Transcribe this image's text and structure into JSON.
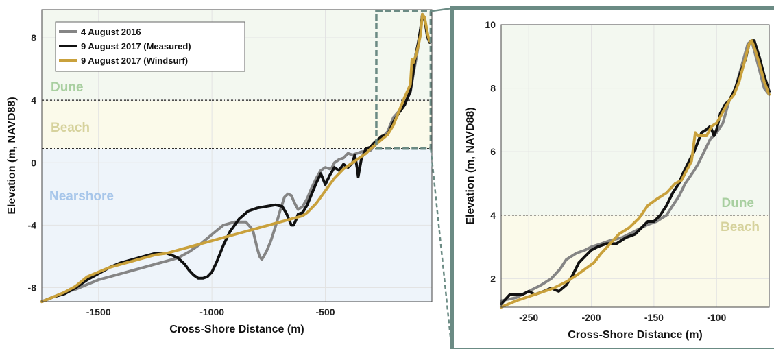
{
  "chart_data": [
    {
      "type": "line",
      "xlabel": "Cross-Shore Distance (m)",
      "ylabel": "Elevation (m, NAVD88)",
      "xlim": [
        -1750,
        -30
      ],
      "ylim": [
        -8.9,
        9.8
      ],
      "xticks": [
        "-1500",
        "-1000",
        "-500"
      ],
      "yticks": [
        "8",
        "4",
        "0",
        "-4",
        "-8"
      ],
      "grid": true,
      "legend_position": "top-left",
      "zones": [
        {
          "label": "Dune",
          "from": 4,
          "to": 9.8,
          "label_color": "#a8cfa0",
          "fill": "#f3f8f0"
        },
        {
          "label": "Beach",
          "from": 0.9,
          "to": 4,
          "label_color": "#d6d29c",
          "fill": "#fbfaea"
        },
        {
          "label": "Nearshore",
          "from": -8.9,
          "to": 0.9,
          "label_color": "#a7c6ea",
          "fill": "#eef4fa"
        }
      ],
      "inset_box": {
        "x": [
          -275,
          -35
        ],
        "y": [
          0.9,
          9.7
        ]
      },
      "series": [
        {
          "name": "4 August 2016",
          "color": "#858585",
          "x": [
            -1750,
            -1700,
            -1650,
            -1600,
            -1550,
            -1500,
            -1450,
            -1400,
            -1350,
            -1300,
            -1250,
            -1200,
            -1150,
            -1100,
            -1050,
            -1000,
            -950,
            -900,
            -850,
            -820,
            -800,
            -790,
            -780,
            -760,
            -740,
            -720,
            -700,
            -680,
            -665,
            -650,
            -635,
            -620,
            -600,
            -580,
            -560,
            -540,
            -520,
            -500,
            -480,
            -470,
            -460,
            -440,
            -420,
            -400,
            -380,
            -360,
            -340,
            -300,
            -275,
            -250,
            -225,
            -200,
            -175,
            -150,
            -125,
            -110,
            -100,
            -90,
            -80,
            -72,
            -62,
            -50,
            -40
          ],
          "y": [
            -8.9,
            -8.6,
            -8.3,
            -8.1,
            -7.8,
            -7.5,
            -7.3,
            -7.1,
            -6.9,
            -6.7,
            -6.5,
            -6.3,
            -6.1,
            -5.7,
            -5.2,
            -4.6,
            -4.0,
            -3.8,
            -3.8,
            -4.3,
            -5.5,
            -6.0,
            -6.2,
            -5.7,
            -5.0,
            -4.1,
            -3.1,
            -2.2,
            -2.0,
            -2.1,
            -2.6,
            -3.0,
            -2.8,
            -2.3,
            -1.6,
            -1.0,
            -0.5,
            -0.3,
            -0.4,
            -0.3,
            0.0,
            0.2,
            0.3,
            0.6,
            0.5,
            0.6,
            0.7,
            0.8,
            1.2,
            1.6,
            2.0,
            2.9,
            3.3,
            3.8,
            4.5,
            5.8,
            6.6,
            7.5,
            8.4,
            9.4,
            9.2,
            8.0,
            7.7
          ]
        },
        {
          "name": "9 August 2017 (Measured)",
          "color": "#111111",
          "x": [
            -1750,
            -1700,
            -1650,
            -1600,
            -1550,
            -1500,
            -1450,
            -1400,
            -1350,
            -1300,
            -1250,
            -1200,
            -1180,
            -1150,
            -1120,
            -1100,
            -1080,
            -1060,
            -1040,
            -1020,
            -1000,
            -980,
            -950,
            -920,
            -880,
            -840,
            -800,
            -760,
            -720,
            -690,
            -670,
            -650,
            -640,
            -630,
            -620,
            -600,
            -580,
            -560,
            -540,
            -520,
            -500,
            -480,
            -460,
            -440,
            -420,
            -400,
            -380,
            -370,
            -360,
            -355,
            -350,
            -340,
            -320,
            -300,
            -290,
            -275,
            -250,
            -225,
            -200,
            -175,
            -150,
            -125,
            -110,
            -100,
            -90,
            -80,
            -72,
            -62,
            -50,
            -40
          ],
          "y": [
            -8.9,
            -8.6,
            -8.4,
            -8.0,
            -7.5,
            -7.1,
            -6.7,
            -6.4,
            -6.2,
            -6.0,
            -5.8,
            -5.8,
            -5.9,
            -6.1,
            -6.5,
            -6.9,
            -7.2,
            -7.4,
            -7.4,
            -7.3,
            -7.0,
            -6.4,
            -5.3,
            -4.4,
            -3.6,
            -3.1,
            -2.9,
            -2.8,
            -2.7,
            -2.8,
            -3.3,
            -4.0,
            -4.0,
            -3.7,
            -3.3,
            -3.2,
            -2.7,
            -2.0,
            -1.3,
            -0.7,
            -1.4,
            -0.8,
            -0.3,
            -0.5,
            -0.1,
            -0.3,
            0.0,
            0.5,
            -0.3,
            -0.9,
            -0.5,
            0.3,
            0.9,
            1.0,
            1.2,
            1.4,
            1.7,
            1.8,
            2.6,
            3.2,
            3.7,
            4.6,
            6.0,
            7.0,
            7.7,
            8.6,
            9.5,
            9.2,
            8.1,
            7.7
          ]
        },
        {
          "name": "9 August 2017 (Windsurf)",
          "color": "#c9a13c",
          "x": [
            -1750,
            -1700,
            -1650,
            -1600,
            -1550,
            -1500,
            -1450,
            -1400,
            -1350,
            -1300,
            -1250,
            -1200,
            -1150,
            -1100,
            -1050,
            -1000,
            -950,
            -900,
            -850,
            -800,
            -750,
            -700,
            -650,
            -600,
            -580,
            -560,
            -540,
            -520,
            -500,
            -480,
            -460,
            -440,
            -420,
            -400,
            -380,
            -360,
            -340,
            -320,
            -300,
            -275,
            -250,
            -225,
            -200,
            -175,
            -150,
            -125,
            -118,
            -112,
            -105,
            -100,
            -90,
            -80,
            -72,
            -62,
            -52,
            -45,
            -40
          ],
          "y": [
            -8.9,
            -8.6,
            -8.3,
            -7.9,
            -7.3,
            -7.0,
            -6.7,
            -6.5,
            -6.3,
            -6.1,
            -5.9,
            -5.8,
            -5.6,
            -5.4,
            -5.2,
            -5.0,
            -4.8,
            -4.6,
            -4.4,
            -4.2,
            -4.0,
            -3.8,
            -3.6,
            -3.4,
            -3.2,
            -2.9,
            -2.6,
            -2.2,
            -1.8,
            -1.4,
            -1.0,
            -0.7,
            -0.4,
            -0.2,
            0.0,
            0.2,
            0.4,
            0.6,
            0.9,
            1.2,
            1.5,
            1.8,
            2.4,
            3.3,
            4.2,
            5.0,
            6.6,
            6.4,
            6.7,
            6.9,
            7.5,
            8.2,
            9.5,
            9.3,
            8.5,
            8.0,
            7.8
          ]
        }
      ]
    },
    {
      "type": "line",
      "xlabel": "Cross-Shore Distance (m)",
      "ylabel": "Elevation (m, NAVD88)",
      "xlim": [
        -272,
        -58
      ],
      "ylim": [
        1.1,
        10.0
      ],
      "xticks": [
        "-250",
        "-200",
        "-150",
        "-100"
      ],
      "yticks": [
        "10",
        "8",
        "6",
        "4",
        "2"
      ],
      "grid": true,
      "zones": [
        {
          "label": "Dune",
          "from": 4,
          "to": 10.0,
          "label_color": "#a8cfa0",
          "fill": "#f3f8f0"
        },
        {
          "label": "Beach",
          "from": 1.1,
          "to": 4,
          "label_color": "#d6d29c",
          "fill": "#fbfaea"
        }
      ],
      "series": [
        {
          "name": "4 August 2016",
          "color": "#858585",
          "x": [
            -272,
            -260,
            -250,
            -240,
            -232,
            -225,
            -220,
            -212,
            -205,
            -200,
            -192,
            -185,
            -175,
            -165,
            -155,
            -148,
            -140,
            -135,
            -130,
            -125,
            -118,
            -115,
            -110,
            -105,
            -100,
            -95,
            -90,
            -85,
            -80,
            -75,
            -72,
            -70,
            -66,
            -62,
            -58
          ],
          "y": [
            1.3,
            1.4,
            1.6,
            1.8,
            2.0,
            2.3,
            2.6,
            2.8,
            2.9,
            3.0,
            3.1,
            3.2,
            3.3,
            3.5,
            3.7,
            3.8,
            4.0,
            4.3,
            4.6,
            5.0,
            5.4,
            5.6,
            6.0,
            6.4,
            6.6,
            6.9,
            7.6,
            8.0,
            8.7,
            9.4,
            9.5,
            9.2,
            8.6,
            8.0,
            7.8
          ]
        },
        {
          "name": "9 August 2017 (Measured)",
          "color": "#111111",
          "x": [
            -272,
            -265,
            -255,
            -250,
            -245,
            -238,
            -232,
            -226,
            -220,
            -215,
            -210,
            -205,
            -200,
            -195,
            -188,
            -180,
            -172,
            -165,
            -160,
            -155,
            -150,
            -145,
            -140,
            -135,
            -130,
            -127,
            -122,
            -118,
            -115,
            -112,
            -108,
            -105,
            -102,
            -100,
            -97,
            -93,
            -90,
            -85,
            -80,
            -77,
            -74,
            -72,
            -70,
            -66,
            -62,
            -58
          ],
          "y": [
            1.2,
            1.5,
            1.5,
            1.6,
            1.5,
            1.6,
            1.7,
            1.6,
            1.8,
            2.1,
            2.5,
            2.7,
            2.9,
            3.0,
            3.1,
            3.1,
            3.3,
            3.4,
            3.6,
            3.8,
            3.8,
            4.0,
            4.3,
            4.7,
            5.0,
            5.3,
            5.7,
            6.0,
            6.3,
            6.6,
            6.7,
            6.8,
            6.5,
            6.7,
            7.2,
            7.5,
            7.6,
            8.0,
            8.6,
            8.9,
            9.4,
            9.5,
            9.5,
            9.0,
            8.4,
            7.9
          ]
        },
        {
          "name": "9 August 2017 (Windsurf)",
          "color": "#c9a13c",
          "x": [
            -272,
            -260,
            -245,
            -230,
            -220,
            -212,
            -205,
            -198,
            -192,
            -185,
            -178,
            -170,
            -162,
            -155,
            -148,
            -140,
            -133,
            -128,
            -124,
            -120,
            -117,
            -115,
            -112,
            -108,
            -104,
            -100,
            -97,
            -93,
            -90,
            -86,
            -82,
            -78,
            -74,
            -72,
            -70,
            -66,
            -62,
            -58
          ],
          "y": [
            1.1,
            1.3,
            1.5,
            1.7,
            1.9,
            2.1,
            2.3,
            2.5,
            2.8,
            3.1,
            3.4,
            3.6,
            3.9,
            4.3,
            4.5,
            4.7,
            5.0,
            5.1,
            5.4,
            5.7,
            6.6,
            6.5,
            6.5,
            6.5,
            6.8,
            6.9,
            7.1,
            7.4,
            7.6,
            7.8,
            8.2,
            8.8,
            9.4,
            9.5,
            9.3,
            8.8,
            8.2,
            7.8
          ]
        }
      ]
    }
  ],
  "colors": {
    "inset_frame": "#6b8b84",
    "grid": "#e3e3e3"
  }
}
